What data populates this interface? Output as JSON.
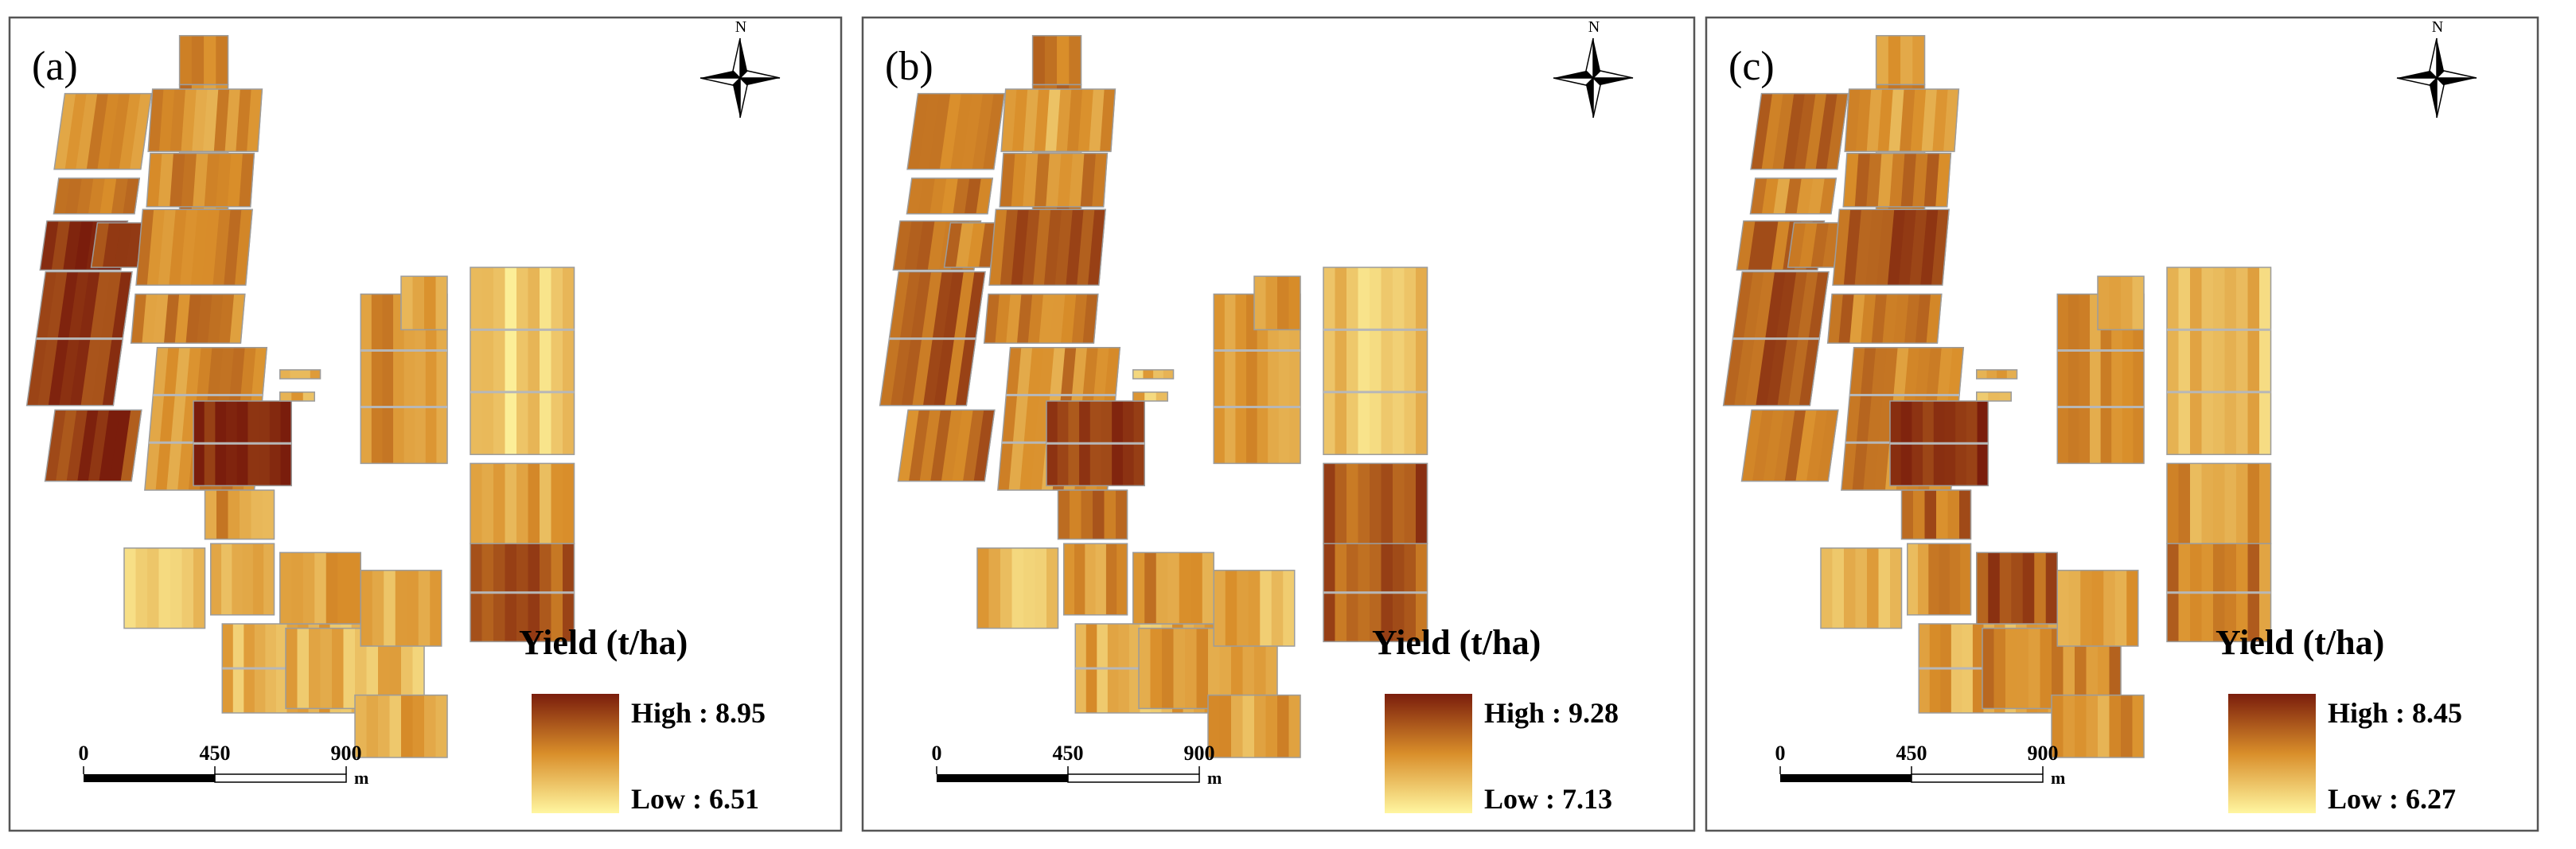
{
  "panels": [
    {
      "label": "(a)",
      "north": "N",
      "legend": {
        "title": "Yield  (t/ha)",
        "high": "High : 8.95",
        "low": "Low : 6.51"
      },
      "scalebar": {
        "ticks": [
          "0",
          "450",
          "900"
        ],
        "unit": "m"
      }
    },
    {
      "label": "(b)",
      "north": "N",
      "legend": {
        "title": "Yield  (t/ha)",
        "high": "High : 9.28",
        "low": "Low : 7.13"
      },
      "scalebar": {
        "ticks": [
          "0",
          "450",
          "900"
        ],
        "unit": "m"
      }
    },
    {
      "label": "(c)",
      "north": "N",
      "legend": {
        "title": "Yield  (t/ha)",
        "high": "High : 8.45",
        "low": "Low : 6.27"
      },
      "scalebar": {
        "ticks": [
          "0",
          "450",
          "900"
        ],
        "unit": "m"
      }
    }
  ],
  "colors": {
    "ramp_high": "#7a1d0c",
    "ramp_mid": "#d98e2a",
    "ramp_low": "#fff6a0",
    "frame": "#555555",
    "ink": "#000000"
  }
}
